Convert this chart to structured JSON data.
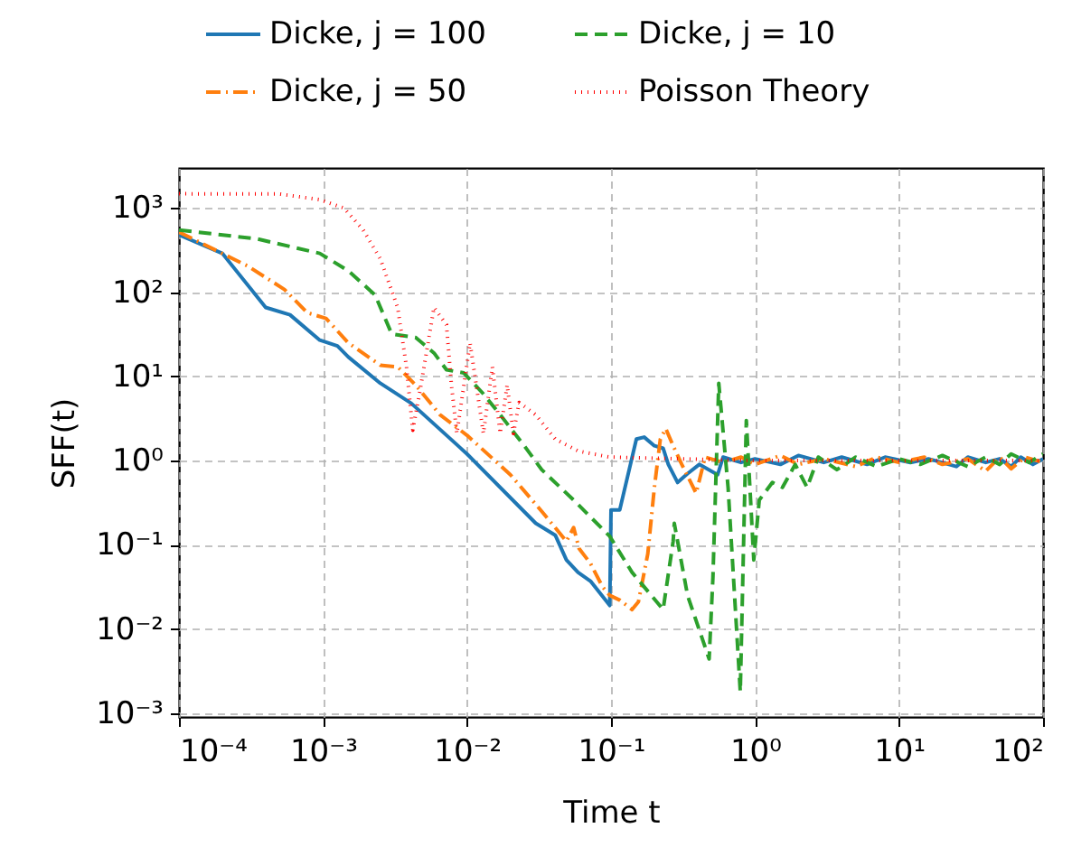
{
  "chart_data": {
    "type": "line",
    "xlabel": "Time t",
    "ylabel": "SFF(t)",
    "log": "xy",
    "grid": true,
    "legend": "top",
    "marker": "none",
    "xlim": [
      0.0001,
      100
    ],
    "ylim": [
      0.0009,
      3000
    ],
    "xticks": [
      {
        "value": 0.0001,
        "label": "10⁻⁴"
      },
      {
        "value": 0.001,
        "label": "10⁻³"
      },
      {
        "value": 0.01,
        "label": "10⁻²"
      },
      {
        "value": 0.1,
        "label": "10⁻¹"
      },
      {
        "value": 1,
        "label": "10⁰"
      },
      {
        "value": 10,
        "label": "10¹"
      },
      {
        "value": 100,
        "label": "10²"
      }
    ],
    "yticks": [
      {
        "value": 0.001,
        "label": "10⁻³"
      },
      {
        "value": 0.01,
        "label": "10⁻²"
      },
      {
        "value": 0.1,
        "label": "10⁻¹"
      },
      {
        "value": 1,
        "label": "10⁰"
      },
      {
        "value": 10,
        "label": "10¹"
      },
      {
        "value": 100,
        "label": "10²"
      },
      {
        "value": 1000,
        "label": "10³"
      }
    ],
    "series": [
      {
        "name": "Dicke, j = 100",
        "color": "#1f77b4",
        "line_style": "solid",
        "x": [
          0.0001,
          0.0002,
          0.0004,
          0.00059,
          0.00095,
          0.00126,
          0.0015,
          0.0025,
          0.0041,
          0.01,
          0.03,
          0.041,
          0.049,
          0.059,
          0.072,
          0.098,
          0.1,
          0.115,
          0.15,
          0.17,
          0.2,
          0.23,
          0.25,
          0.29,
          0.34,
          0.41,
          0.55,
          0.6,
          0.8,
          1,
          1.5,
          2,
          3,
          4,
          6,
          8,
          12,
          16,
          25,
          30,
          40,
          50,
          60,
          70,
          85,
          100
        ],
        "values": [
          480,
          290,
          66,
          54,
          27,
          23,
          17,
          8.3,
          4.8,
          1.2,
          0.18,
          0.13,
          0.066,
          0.047,
          0.037,
          0.019,
          0.26,
          0.26,
          1.8,
          1.9,
          1.5,
          1.4,
          0.9,
          0.55,
          0.7,
          0.9,
          0.68,
          1.1,
          0.95,
          1.05,
          0.9,
          1.15,
          0.95,
          1.1,
          0.9,
          1.1,
          0.95,
          1.05,
          0.85,
          1.1,
          0.95,
          1.05,
          0.85,
          1.1,
          0.9,
          1.05
        ]
      },
      {
        "name": "Dicke, j = 50",
        "color": "#ff7f0e",
        "line_style": "dashdot",
        "x": [
          0.0001,
          0.0003,
          0.00054,
          0.00078,
          0.00105,
          0.0015,
          0.0025,
          0.0033,
          0.0044,
          0.0065,
          0.01,
          0.02,
          0.033,
          0.049,
          0.055,
          0.06,
          0.072,
          0.087,
          0.098,
          0.115,
          0.14,
          0.155,
          0.18,
          0.2,
          0.22,
          0.24,
          0.27,
          0.31,
          0.39,
          0.45,
          0.6,
          0.8,
          1,
          1.5,
          2,
          3,
          5,
          7,
          10,
          15,
          20,
          30,
          40,
          50,
          60,
          75,
          100
        ],
        "values": [
          520,
          205,
          108,
          57,
          49,
          25,
          13.6,
          13,
          7.9,
          3.5,
          2,
          0.68,
          0.25,
          0.11,
          0.16,
          0.09,
          0.06,
          0.032,
          0.025,
          0.022,
          0.017,
          0.021,
          0.078,
          0.48,
          1.8,
          2.4,
          1.5,
          0.9,
          0.41,
          1.1,
          0.95,
          1.1,
          0.9,
          1.15,
          0.9,
          1.05,
          0.85,
          1.1,
          0.95,
          1.1,
          0.9,
          1.05,
          0.75,
          1.1,
          0.8,
          1.1,
          0.95
        ]
      },
      {
        "name": "Dicke, j = 10",
        "color": "#2ca02c",
        "line_style": "dashed",
        "x": [
          0.0001,
          0.00035,
          0.00095,
          0.0015,
          0.0023,
          0.003,
          0.0044,
          0.0059,
          0.0072,
          0.0095,
          0.013,
          0.017,
          0.025,
          0.033,
          0.055,
          0.098,
          0.14,
          0.23,
          0.27,
          0.275,
          0.34,
          0.48,
          0.51,
          0.56,
          0.65,
          0.79,
          0.87,
          0.98,
          1.07,
          1.32,
          1.55,
          1.9,
          2.3,
          2.75,
          3.7,
          5,
          7,
          10,
          14,
          20,
          30,
          40,
          50,
          60,
          80,
          100
        ],
        "values": [
          550,
          430,
          290,
          180,
          93,
          32,
          29,
          19,
          12,
          11,
          6.2,
          3.5,
          1.5,
          0.78,
          0.34,
          0.126,
          0.047,
          0.017,
          0.11,
          0.18,
          0.025,
          0.0044,
          0.041,
          8.3,
          0.48,
          0.0018,
          3,
          0.066,
          0.34,
          0.55,
          0.48,
          0.9,
          0.48,
          1.1,
          0.78,
          1.1,
          0.85,
          1.05,
          0.9,
          1.15,
          0.85,
          1.1,
          0.9,
          1.2,
          0.95,
          1.2
        ]
      },
      {
        "name": "Poisson Theory",
        "color": "#ff0000",
        "line_style": "dotted",
        "x": [
          0.0001,
          0.0005,
          0.00095,
          0.0014,
          0.0019,
          0.0025,
          0.0033,
          0.0038,
          0.0042,
          0.0047,
          0.0059,
          0.0072,
          0.0078,
          0.0085,
          0.0105,
          0.013,
          0.015,
          0.017,
          0.019,
          0.021,
          0.023,
          0.03,
          0.041,
          0.059,
          0.098,
          1,
          100
        ],
        "values": [
          1480,
          1470,
          1260,
          1000,
          550,
          250,
          66,
          13,
          2.3,
          6.5,
          66,
          41,
          7.9,
          2.1,
          25,
          2.1,
          13,
          2.1,
          7.9,
          2.1,
          4.9,
          3.5,
          1.8,
          1.3,
          1.1,
          1,
          1
        ]
      }
    ]
  }
}
